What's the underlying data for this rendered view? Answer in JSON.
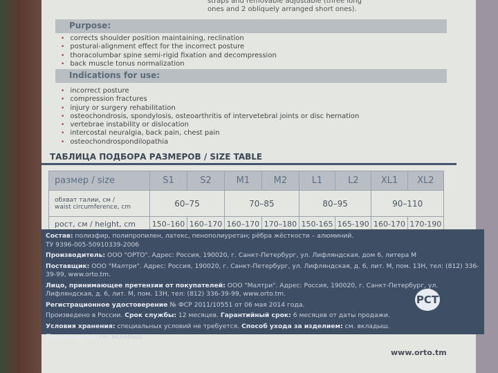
{
  "top_note": [
    "straps and removable adjustable (three long",
    "ones and 2 obliquely arranged short ones)."
  ],
  "purpose": {
    "title": "Purpose:",
    "items": [
      "corrects shoulder position maintaining, reclination",
      "postural-alignment effect for the incorrect posture",
      "thoracolumbar spine semi-rigid fixation and decompression",
      "back muscle tonus normalization"
    ]
  },
  "indications": {
    "title": "Indications for use:",
    "items": [
      "incorrect posture",
      "compression fractures",
      "injury or surgery rehabilitation",
      "osteochondrosis, spondylosis, osteoarthritis of intervetebral joints or disc hernation",
      "vertebrae instability or dislocation",
      "intercostal neuralgia, back pain, chest pain",
      "osteochondrospondilopathia"
    ]
  },
  "size_table": {
    "title": "ТАБЛИЦА ПОДБОРА РАЗМЕРОВ / SIZE TABLE",
    "size_label": "размер / size",
    "sizes": [
      "S1",
      "S2",
      "M1",
      "M2",
      "L1",
      "L2",
      "XL1",
      "XL2"
    ],
    "waist_label": [
      "обхват талии, см /",
      "waist circumference, cm"
    ],
    "waist": [
      "60–75",
      "70–85",
      "80–95",
      "90–110"
    ],
    "height_label": "рост, см / height, cm",
    "heights": [
      "150–160",
      "160–170",
      "160–170",
      "170–180",
      "150-165",
      "165-190",
      "160-170",
      "170-190"
    ]
  },
  "info": [
    {
      "label": "Состав:",
      "text": " полиэфир, полипропилен, латекс, пенополиуретан; рёбра жёсткости – алюминий."
    },
    {
      "label": "",
      "text": "ТУ 9396-005-50910339-2006"
    },
    {
      "label": "Производитель:",
      "text": " ООО \"ОРТО\". Адрес: Россия, 190020, г. Санкт-Петербург, ул. Лифляндская, дом 6, литера М"
    },
    {
      "label": "Поставщик:",
      "text": " ООО \"Малтри\". Адрес: Россия, 190020, г. Санкт-Петербург, ул. Лифляндская, д. 6, лит. М, пом. 13Н, тел: (812) 336-39-99, www.orto.tm."
    },
    {
      "label": "Лицо, принимающее претензии от покупателей:",
      "text": " ООО \"Малтри\". Адрес: Россия, 190020, г. Санкт-Петербург, ул. Лифляндская, д. 6, лит. М, пом. 13Н, тел: (812) 336-39-99, www.orto.tm."
    },
    {
      "label": "Регистрационное удостоверение",
      "text": " № ФСР 2011/10551 от 06 мая 2014 года."
    }
  ],
  "line7": {
    "a": "Произведено в России. ",
    "b": "Срок службы:",
    "c": " 12 месяцев. ",
    "d": "Гарантийный срок:",
    "e": " 6 месяцев от даты продажи."
  },
  "line8": {
    "a": "Условия хранения:",
    "b": " специальных условий не требуется. ",
    "c": "Способ ухода за изделием:",
    "d": " см. вкладыш."
  },
  "line9": {
    "a": "Произведено:",
    "b": " см. вкладыш"
  },
  "gost_mark": "РСТ",
  "website": "www.orto.tm"
}
